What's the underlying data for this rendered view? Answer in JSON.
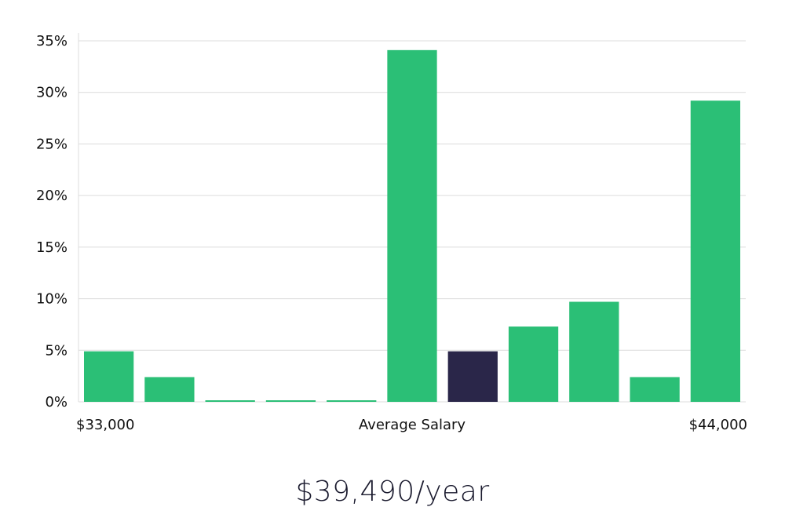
{
  "colors": {
    "bar": "#2bbf76",
    "highlight": "#2a2649",
    "grid": "#dcdcdc",
    "text": "#111111"
  },
  "chart_data": {
    "type": "bar",
    "title": "",
    "xlabel": "Average Salary",
    "ylabel": "",
    "x_range_labels": [
      "$33,000",
      "$44,000"
    ],
    "ylim": [
      0,
      35
    ],
    "y_ticks": [
      0,
      5,
      10,
      15,
      20,
      25,
      30,
      35
    ],
    "y_tick_labels": [
      "0%",
      "5%",
      "10%",
      "15%",
      "20%",
      "25%",
      "30%",
      "35%"
    ],
    "grid": true,
    "values": [
      4.9,
      2.4,
      0,
      0,
      0,
      34.1,
      4.9,
      7.3,
      9.7,
      2.4,
      29.2
    ],
    "highlight_index": 6
  },
  "summary": {
    "salary": "$39,490/year"
  }
}
